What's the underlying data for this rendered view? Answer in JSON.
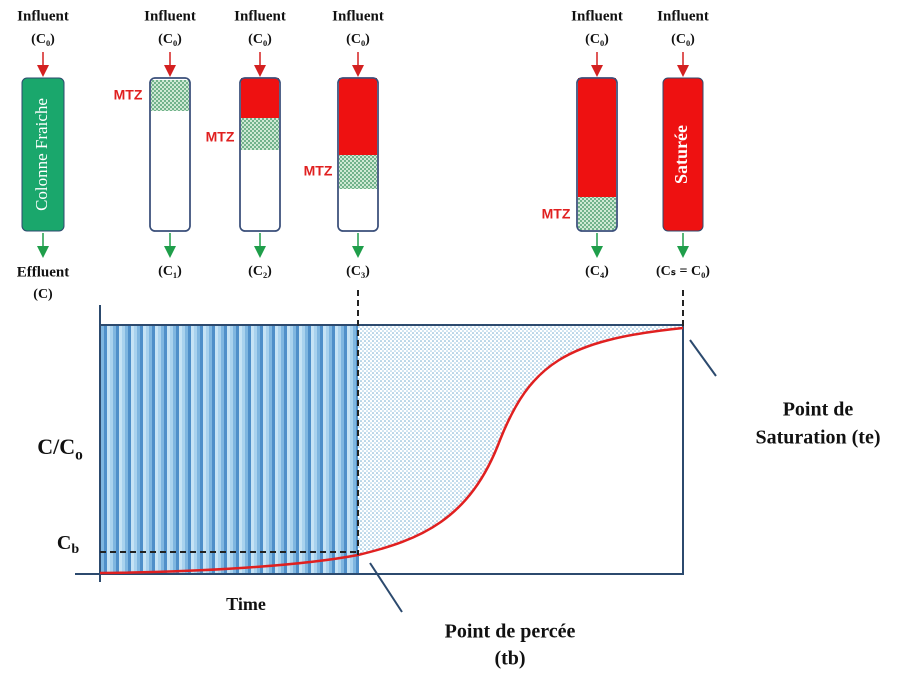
{
  "columns": [
    {
      "influent": "Influent",
      "influent_label": "(C₀)",
      "label": "Colonne Fraiche",
      "effluent": "Effluent",
      "effluent_label": "(C)"
    },
    {
      "influent": "Influent",
      "influent_label": "(C₀)",
      "mtz": "MTZ",
      "effluent_label": "(C₁)"
    },
    {
      "influent": "Influent",
      "influent_label": "(C₀)",
      "mtz": "MTZ",
      "effluent_label": "(C₂)"
    },
    {
      "influent": "Influent",
      "influent_label": "(C₀)",
      "mtz": "MTZ",
      "effluent_label": "(C₃)"
    },
    {
      "influent": "Influent",
      "influent_label": "(C₀)",
      "mtz": "MTZ",
      "effluent_label": "(C₄)"
    },
    {
      "influent": "Influent",
      "influent_label": "(C₀)",
      "label": "Saturée",
      "effluent_label": "(Cₛ = C₀)"
    }
  ],
  "graph": {
    "y_label": {
      "main": "C/C",
      "sub": "o"
    },
    "cb_label": {
      "main": "C",
      "sub": "b"
    },
    "x_label": "Time",
    "breakthrough": {
      "line1": "Point de percée",
      "line2": "(tb)"
    },
    "saturation": {
      "line1": "Point de",
      "line2": "Saturation (te)"
    }
  }
}
